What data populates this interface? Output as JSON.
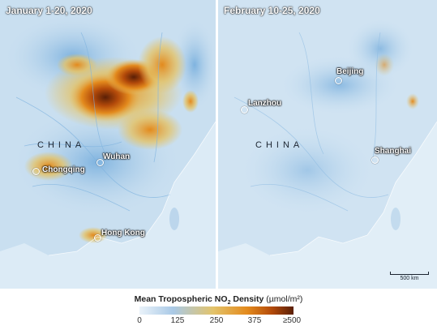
{
  "panels": {
    "left": {
      "title": "January 1-20, 2020",
      "country": "CHINA",
      "cities": [
        {
          "name": "Chongqing",
          "marker": "Chongqing"
        },
        {
          "name": "Wuhan",
          "marker": "Wuhan"
        },
        {
          "name": "Hong Kong",
          "marker": "Hong Kong"
        }
      ]
    },
    "right": {
      "title": "February 10-25, 2020",
      "country": "CHINA",
      "cities": [
        {
          "name": "Beijing"
        },
        {
          "name": "Lanzhou"
        },
        {
          "name": "Shanghai"
        }
      ],
      "scale_label": "500 km"
    }
  },
  "legend": {
    "title_main": "Mean Tropospheric NO",
    "title_sub": "2",
    "title_tail": " Density ",
    "unit": "(µmol/m²)",
    "ticks": [
      "0",
      "125",
      "250",
      "375",
      "≥500"
    ],
    "gradient_colors": [
      "#eaf3fa",
      "#a9c9e6",
      "#e3c36a",
      "#e38a1d",
      "#b34a0a",
      "#5a1f06"
    ]
  }
}
